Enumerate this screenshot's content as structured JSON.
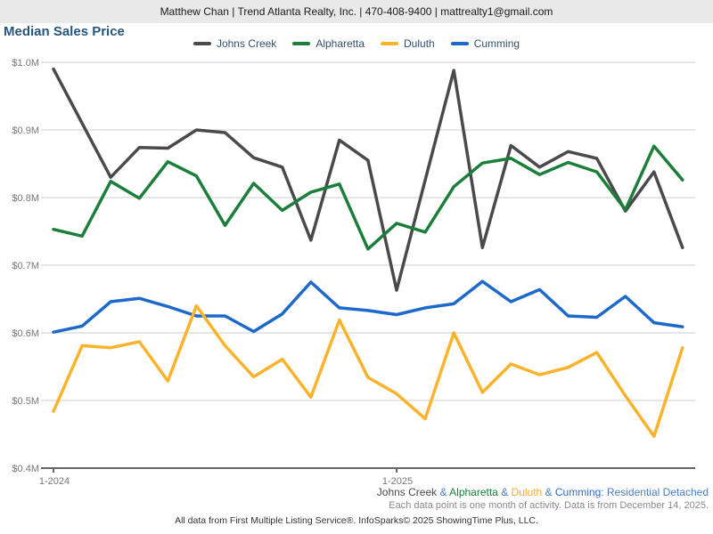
{
  "header": {
    "contact_bar": "Matthew Chan | Trend Atlanta Realty, Inc. | 470-408-9400 | mattrealty1@gmail.com"
  },
  "title": "Median Sales Price",
  "colors": {
    "johns_creek": "#4a4a4a",
    "alpharetta": "#1b7e3a",
    "duluth": "#fcb32c",
    "cumming": "#1c69c9",
    "gridline": "#cccccc",
    "axis": "#666666",
    "axis_label": "#777777",
    "footer_blue": "#4a7fc1"
  },
  "legend": [
    {
      "label": "Johns Creek",
      "color": "#4a4a4a"
    },
    {
      "label": "Alpharetta",
      "color": "#1b7e3a"
    },
    {
      "label": "Duluth",
      "color": "#fcb32c"
    },
    {
      "label": "Cumming",
      "color": "#1c69c9"
    }
  ],
  "chart_data": {
    "type": "line",
    "title": "Median Sales Price",
    "unit": "USD millions",
    "categories": [
      "1-2024",
      "2-2024",
      "3-2024",
      "4-2024",
      "5-2024",
      "6-2024",
      "7-2024",
      "8-2024",
      "9-2024",
      "10-2024",
      "11-2024",
      "12-2024",
      "1-2025",
      "2-2025",
      "3-2025",
      "4-2025",
      "5-2025",
      "6-2025",
      "7-2025",
      "8-2025",
      "9-2025",
      "10-2025",
      "11-2025"
    ],
    "series": [
      {
        "name": "Johns Creek",
        "color": "#4a4a4a",
        "values": [
          0.99,
          0.91,
          0.83,
          0.874,
          0.873,
          0.9,
          0.896,
          0.859,
          0.845,
          0.737,
          0.885,
          0.855,
          0.663,
          0.826,
          0.988,
          0.726,
          0.877,
          0.845,
          0.868,
          0.858,
          0.78,
          0.838,
          0.726
        ]
      },
      {
        "name": "Alpharetta",
        "color": "#1b7e3a",
        "values": [
          0.753,
          0.743,
          0.824,
          0.799,
          0.853,
          0.832,
          0.759,
          0.821,
          0.781,
          0.808,
          0.82,
          0.724,
          0.762,
          0.749,
          0.816,
          0.851,
          0.858,
          0.834,
          0.852,
          0.838,
          0.782,
          0.876,
          0.826
        ]
      },
      {
        "name": "Cumming",
        "color": "#1c69c9",
        "values": [
          0.601,
          0.61,
          0.646,
          0.651,
          0.639,
          0.625,
          0.625,
          0.602,
          0.628,
          0.675,
          0.637,
          0.633,
          0.627,
          0.637,
          0.643,
          0.676,
          0.646,
          0.664,
          0.625,
          0.623,
          0.654,
          0.615,
          0.609
        ]
      },
      {
        "name": "Duluth",
        "color": "#fcb32c",
        "values": [
          0.484,
          0.581,
          0.578,
          0.587,
          0.529,
          0.64,
          0.581,
          0.535,
          0.561,
          0.505,
          0.619,
          0.534,
          0.51,
          0.473,
          0.6,
          0.512,
          0.554,
          0.538,
          0.549,
          0.571,
          0.507,
          0.447,
          0.578
        ]
      }
    ],
    "draw_order": [
      "Johns Creek",
      "Alpharetta",
      "Cumming",
      "Duluth"
    ],
    "ylim": [
      0.4,
      1.0
    ],
    "y_ticks": [
      {
        "value": 1.0,
        "label": "$1.0M"
      },
      {
        "value": 0.9,
        "label": "$0.9M"
      },
      {
        "value": 0.8,
        "label": "$0.8M"
      },
      {
        "value": 0.7,
        "label": "$0.7M"
      },
      {
        "value": 0.6,
        "label": "$0.6M"
      },
      {
        "value": 0.5,
        "label": "$0.5M"
      },
      {
        "value": 0.4,
        "label": "$0.4M"
      }
    ],
    "x_ticks": [
      {
        "index": 0,
        "label": "1-2024"
      },
      {
        "index": 12,
        "label": "1-2025"
      }
    ],
    "grid": true,
    "legend_position": "top"
  },
  "footer": {
    "series_line": [
      {
        "text": "Johns Creek",
        "color": "#4a4a4a"
      },
      {
        "text": " & ",
        "color": "#4a7fc1"
      },
      {
        "text": "Alpharetta",
        "color": "#1b7e3a"
      },
      {
        "text": " & ",
        "color": "#4a7fc1"
      },
      {
        "text": "Duluth",
        "color": "#f3ab37"
      },
      {
        "text": " & ",
        "color": "#4a7fc1"
      },
      {
        "text": "Cumming",
        "color": "#2e6fc0"
      },
      {
        "text": ": Residential Detached",
        "color": "#4a7fc1"
      }
    ],
    "note": "Each data point is one month of activity. Data is from December 14, 2025.",
    "attribution": "All data from First Multiple Listing Service®. InfoSparks© 2025 ShowingTime Plus, LLC."
  }
}
